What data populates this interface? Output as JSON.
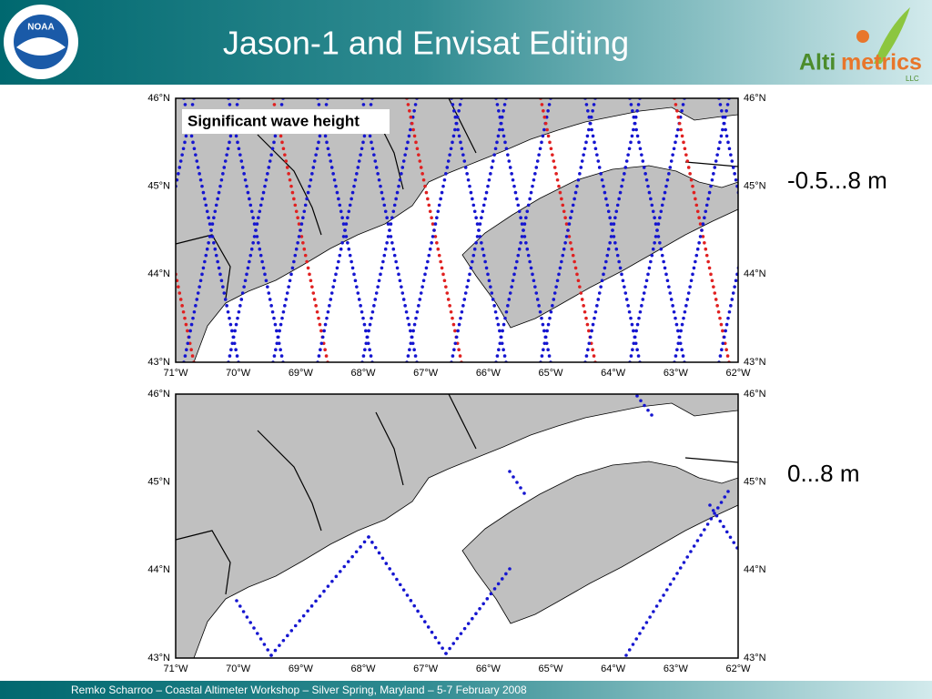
{
  "header": {
    "title": "Jason-1 and Envisat Editing",
    "left_logo": "NOAA",
    "right_logo": {
      "part1": "Alti",
      "part2": "metrics",
      "suffix": "LLC"
    }
  },
  "maps": [
    {
      "legend": "Significant wave height",
      "range_label": "-0.5...8 m",
      "lat_labels": [
        "46°N",
        "45°N",
        "44°N",
        "43°N"
      ],
      "lon_labels": [
        "71°W",
        "70°W",
        "69°W",
        "68°W",
        "67°W",
        "66°W",
        "65°W",
        "64°W",
        "63°W",
        "62°W"
      ]
    },
    {
      "range_label": "0...8 m",
      "lat_labels": [
        "46°N",
        "45°N",
        "44°N",
        "43°N"
      ],
      "lon_labels": [
        "71°W",
        "70°W",
        "69°W",
        "68°W",
        "67°W",
        "66°W",
        "65°W",
        "64°W",
        "63°W",
        "62°W"
      ]
    }
  ],
  "footer": "Remko Scharroo – Coastal Altimeter Workshop – Silver Spring, Maryland – 5-7 February 2008"
}
